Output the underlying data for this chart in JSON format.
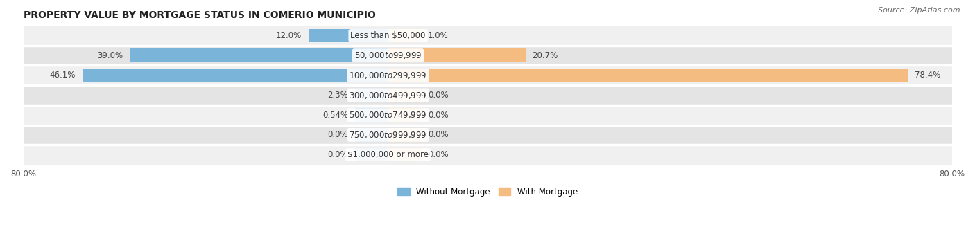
{
  "title": "PROPERTY VALUE BY MORTGAGE STATUS IN COMERIO MUNICIPIO",
  "source": "Source: ZipAtlas.com",
  "categories": [
    "Less than $50,000",
    "$50,000 to $99,999",
    "$100,000 to $299,999",
    "$300,000 to $499,999",
    "$500,000 to $749,999",
    "$750,000 to $999,999",
    "$1,000,000 or more"
  ],
  "without_mortgage": [
    12.0,
    39.0,
    46.1,
    2.3,
    0.54,
    0.0,
    0.0
  ],
  "with_mortgage": [
    1.0,
    20.7,
    78.4,
    0.0,
    0.0,
    0.0,
    0.0
  ],
  "wo_labels": [
    "12.0%",
    "39.0%",
    "46.1%",
    "2.3%",
    "0.54%",
    "0.0%",
    "0.0%"
  ],
  "wm_labels": [
    "1.0%",
    "20.7%",
    "78.4%",
    "0.0%",
    "0.0%",
    "0.0%",
    "0.0%"
  ],
  "bar_color_without": "#7ab4d8",
  "bar_color_with": "#f5bc82",
  "bar_color_without_light": "#aecde8",
  "bar_color_with_light": "#f8d9b0",
  "background_row_light": "#f0f0f0",
  "background_row_dark": "#e4e4e4",
  "separator_color": "#ffffff",
  "xlim_left": -55,
  "xlim_right": 85,
  "min_bar_width": 5.0,
  "legend_without": "Without Mortgage",
  "legend_with": "With Mortgage",
  "title_fontsize": 10,
  "source_fontsize": 8,
  "label_fontsize": 8.5,
  "category_fontsize": 8.5
}
